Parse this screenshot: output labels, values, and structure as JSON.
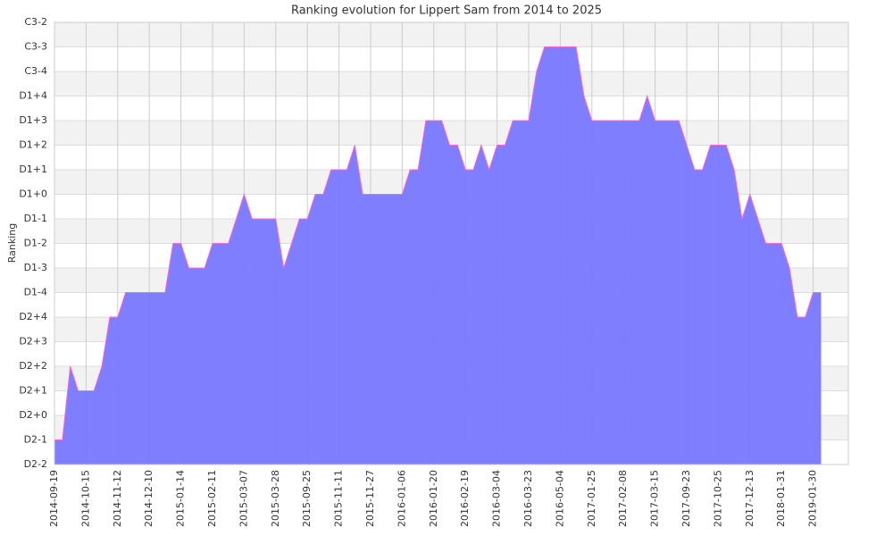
{
  "chart_data": {
    "type": "area",
    "title": "Ranking evolution for Lippert Sam from 2014 to 2025",
    "y_label": "Ranking",
    "categories": [
      "2014-09-19",
      null,
      null,
      null,
      "2014-10-15",
      null,
      null,
      null,
      "2014-11-12",
      null,
      null,
      null,
      "2014-12-10",
      null,
      null,
      null,
      "2015-01-14",
      null,
      null,
      null,
      "2015-02-11",
      null,
      null,
      null,
      "2015-03-07",
      null,
      null,
      null,
      "2015-03-28",
      null,
      null,
      null,
      "2015-09-25",
      null,
      null,
      null,
      "2015-11-11",
      null,
      null,
      null,
      "2015-11-27",
      null,
      null,
      null,
      "2016-01-06",
      null,
      null,
      null,
      "2016-01-20",
      null,
      null,
      null,
      "2016-02-19",
      null,
      null,
      null,
      "2016-03-04",
      null,
      null,
      null,
      "2016-03-23",
      null,
      null,
      null,
      "2016-05-04",
      null,
      null,
      null,
      "2017-01-25",
      null,
      null,
      null,
      "2017-02-08",
      null,
      null,
      null,
      "2017-03-15",
      null,
      null,
      null,
      "2017-09-23",
      null,
      null,
      null,
      "2017-10-25",
      null,
      null,
      null,
      "2017-12-13",
      null,
      null,
      null,
      "2018-01-31",
      null,
      null,
      null,
      "2019-01-30",
      null
    ],
    "values": [
      1,
      1,
      4,
      3,
      3,
      3,
      4,
      6,
      6,
      7,
      7,
      7,
      7,
      7,
      7,
      9,
      9,
      8,
      8,
      8,
      9,
      9,
      9,
      10,
      11,
      10,
      10,
      10,
      10,
      8,
      9,
      10,
      10,
      11,
      11,
      12,
      12,
      12,
      13,
      11,
      11,
      11,
      11,
      11,
      11,
      12,
      12,
      14,
      14,
      14,
      13,
      13,
      12,
      12,
      13,
      12,
      13,
      13,
      14,
      14,
      14,
      16,
      17,
      17,
      17,
      17,
      17,
      15,
      14,
      14,
      14,
      14,
      14,
      14,
      14,
      15,
      14,
      14,
      14,
      14,
      13,
      12,
      12,
      13,
      13,
      13,
      12,
      10,
      11,
      10,
      9,
      9,
      9,
      8,
      6,
      6,
      7,
      7
    ],
    "color": "#7777ff",
    "line_color": "#ff66cc",
    "ylim": [
      0,
      18
    ],
    "yticks": [
      {
        "value": 0,
        "label": "D2-2"
      },
      {
        "value": 1,
        "label": "D2-1"
      },
      {
        "value": 2,
        "label": "D2+0"
      },
      {
        "value": 3,
        "label": "D2+1"
      },
      {
        "value": 4,
        "label": "D2+2"
      },
      {
        "value": 5,
        "label": "D2+3"
      },
      {
        "value": 6,
        "label": "D2+4"
      },
      {
        "value": 7,
        "label": "D1-4"
      },
      {
        "value": 8,
        "label": "D1-3"
      },
      {
        "value": 9,
        "label": "D1-2"
      },
      {
        "value": 10,
        "label": "D1-1"
      },
      {
        "value": 11,
        "label": "D1+0"
      },
      {
        "value": 12,
        "label": "D1+1"
      },
      {
        "value": 13,
        "label": "D1+2"
      },
      {
        "value": 14,
        "label": "D1+3"
      },
      {
        "value": 15,
        "label": "D1+4"
      },
      {
        "value": 16,
        "label": "C3-4"
      },
      {
        "value": 17,
        "label": "C3-3"
      },
      {
        "value": 18,
        "label": "C3-2"
      }
    ],
    "grid": true
  }
}
